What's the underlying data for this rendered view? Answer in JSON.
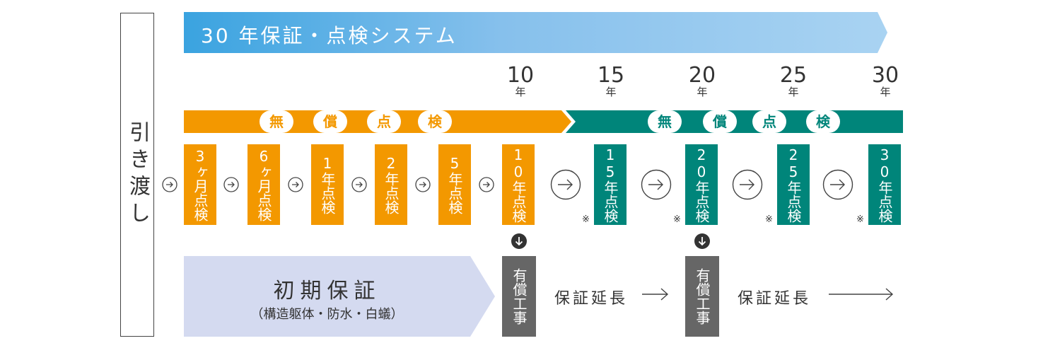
{
  "handover": {
    "label": "引き渡し"
  },
  "banner": {
    "title": "30 年保証・点検システム"
  },
  "years": [
    {
      "num": "10",
      "unit": "年"
    },
    {
      "num": "15",
      "unit": "年"
    },
    {
      "num": "20",
      "unit": "年"
    },
    {
      "num": "25",
      "unit": "年"
    },
    {
      "num": "30",
      "unit": "年"
    }
  ],
  "free_band": {
    "chars": [
      "無",
      "償",
      "点",
      "検"
    ],
    "color": "#f39800"
  },
  "paid_band": {
    "chars": [
      "無",
      "償",
      "点",
      "検"
    ],
    "color": "#00857a"
  },
  "inspections": [
    {
      "label": "3ヶ月点検",
      "type": "free"
    },
    {
      "label": "6ヶ月点検",
      "type": "free"
    },
    {
      "label": "1年点検",
      "type": "free"
    },
    {
      "label": "2年点検",
      "type": "free"
    },
    {
      "label": "5年点検",
      "type": "free"
    },
    {
      "label": "10年点検",
      "type": "free"
    },
    {
      "label": "15年点検",
      "type": "teal",
      "note": "※"
    },
    {
      "label": "20年点検",
      "type": "teal",
      "note": "※"
    },
    {
      "label": "25年点検",
      "type": "teal",
      "note": "※"
    },
    {
      "label": "30年点検",
      "type": "teal",
      "note": "※"
    }
  ],
  "initial_warranty": {
    "title": "初期保証",
    "subtitle": "（構造躯体・防水・白蟻）"
  },
  "paid_work": [
    {
      "label": "有償工事"
    },
    {
      "label": "有償工事"
    }
  ],
  "extensions": [
    {
      "label": "保証延長"
    },
    {
      "label": "保証延長"
    }
  ],
  "colors": {
    "orange": "#f39800",
    "teal": "#00857a",
    "banner": "#3aa3e0",
    "initial": "#d4daf0",
    "grey": "#666666"
  }
}
